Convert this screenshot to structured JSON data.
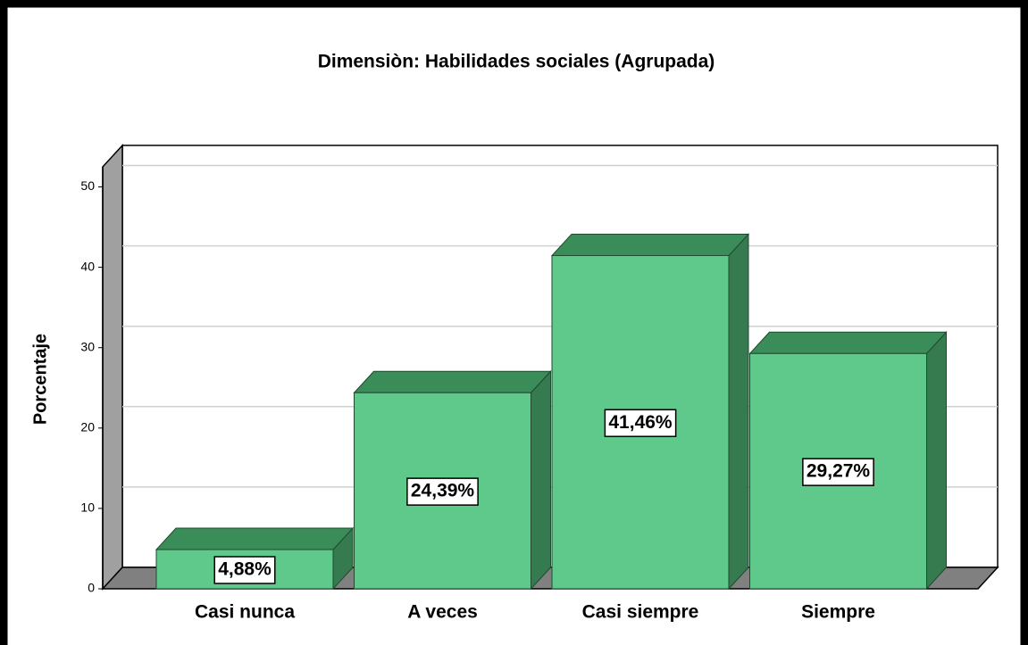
{
  "chart_data": {
    "type": "bar",
    "title": "Dimensiòn: Habilidades sociales (Agrupada)",
    "y_label": "Porcentaje",
    "categories": [
      "Casi nunca",
      "A veces",
      "Casi siempre",
      "Siempre"
    ],
    "values": [
      4.88,
      24.39,
      41.46,
      29.27
    ],
    "value_labels": [
      "4,88%",
      "24,39%",
      "41,46%",
      "29,27%"
    ],
    "color": "#5ec98a",
    "ylim": [
      0,
      52.5
    ],
    "yticks": [
      0,
      10,
      20,
      30,
      40,
      50
    ],
    "grid": true
  }
}
